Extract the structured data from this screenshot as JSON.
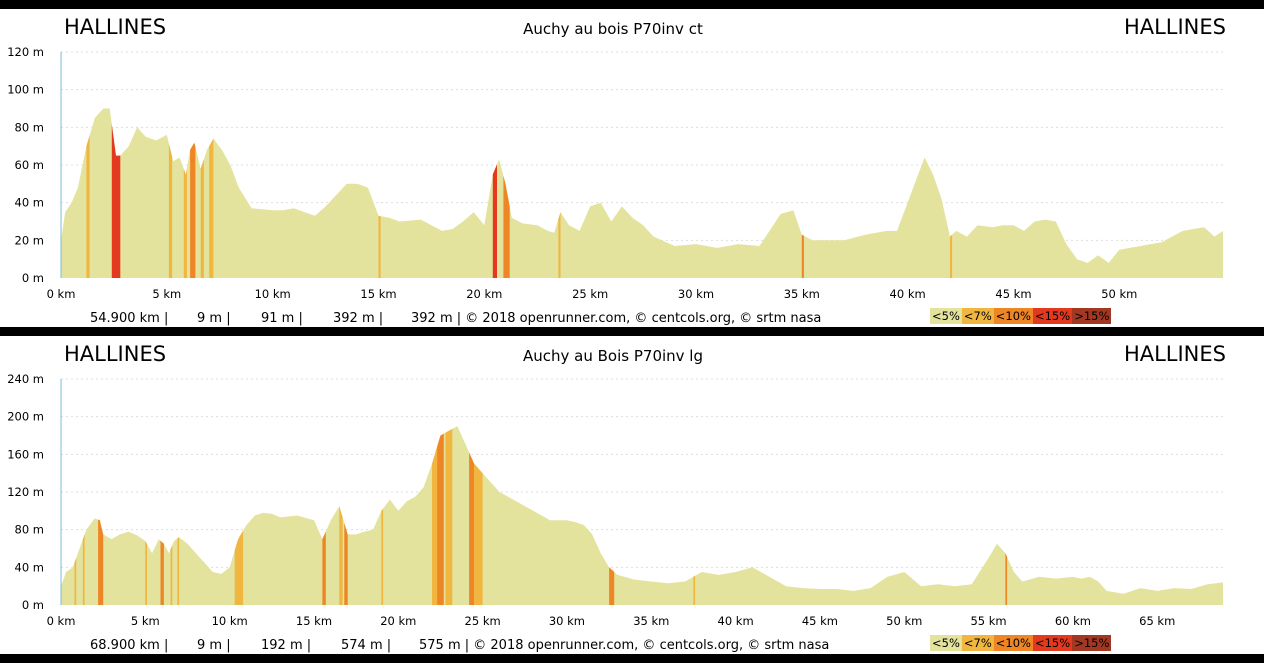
{
  "chart_data": [
    {
      "type": "area",
      "title": "Auchy au bois P70inv ct",
      "start_label": "HALLINES",
      "end_label": "HALLINES",
      "x_unit": "km",
      "y_unit": "m",
      "xlim": [
        0,
        54.9
      ],
      "ylim": [
        0,
        120
      ],
      "y_ticks": [
        "0 m",
        "20 m",
        "40 m",
        "60 m",
        "80 m",
        "100 m",
        "120 m"
      ],
      "x_ticks": [
        "0 km",
        "5 km",
        "10 km",
        "15 km",
        "20 km",
        "25 km",
        "30 km",
        "35 km",
        "40 km",
        "45 km",
        "50 km"
      ],
      "grid": true,
      "x": [
        0,
        0.2,
        0.5,
        0.8,
        1.2,
        1.6,
        2.0,
        2.3,
        2.6,
        2.8,
        3.2,
        3.6,
        4.0,
        4.5,
        5.0,
        5.3,
        5.6,
        5.9,
        6.1,
        6.3,
        6.6,
        6.9,
        7.2,
        7.6,
        8.0,
        8.4,
        9.0,
        10.0,
        10.5,
        11.0,
        11.5,
        12.0,
        12.5,
        13.0,
        13.5,
        14.0,
        14.5,
        15.0,
        15.5,
        16.0,
        17.0,
        17.5,
        18.0,
        18.5,
        19.0,
        19.5,
        20.0,
        20.4,
        20.7,
        21.0,
        21.3,
        21.8,
        22.5,
        23.0,
        23.3,
        23.6,
        24.0,
        24.5,
        25.0,
        25.5,
        26.0,
        26.5,
        27.0,
        27.5,
        28.0,
        29.0,
        30.0,
        31.0,
        32.0,
        33.0,
        34.0,
        34.6,
        35.0,
        35.5,
        36.0,
        37.0,
        38.0,
        39.0,
        39.5,
        40.0,
        40.5,
        40.8,
        41.2,
        41.6,
        42.0,
        42.3,
        42.8,
        43.3,
        44.0,
        44.5,
        45.0,
        45.5,
        46.0,
        46.5,
        47.0,
        47.5,
        48.0,
        48.5,
        49.0,
        49.5,
        50.0,
        51.0,
        52.0,
        53.0,
        53.5,
        54.0,
        54.5,
        54.9
      ],
      "y": [
        20,
        35,
        40,
        48,
        70,
        85,
        90,
        90,
        65,
        65,
        70,
        80,
        75,
        73,
        76,
        62,
        64,
        55,
        68,
        72,
        58,
        68,
        74,
        68,
        60,
        48,
        37,
        36,
        36,
        37,
        35,
        33,
        38,
        44,
        50,
        50,
        48,
        33,
        32,
        30,
        31,
        28,
        25,
        26,
        30,
        35,
        28,
        55,
        63,
        50,
        32,
        29,
        28,
        25,
        24,
        35,
        28,
        25,
        38,
        40,
        30,
        38,
        32,
        28,
        22,
        17,
        18,
        16,
        18,
        17,
        34,
        36,
        23,
        20,
        20,
        20,
        23,
        25,
        25,
        40,
        55,
        64,
        55,
        42,
        22,
        25,
        22,
        28,
        27,
        28,
        28,
        25,
        30,
        31,
        30,
        18,
        10,
        8,
        12,
        8,
        15,
        17,
        19,
        25,
        26,
        27,
        22,
        25
      ],
      "steep_segments": [
        {
          "from": 1.2,
          "to": 1.35,
          "class": "<7%"
        },
        {
          "from": 2.4,
          "to": 2.8,
          "class": "<15%"
        },
        {
          "from": 5.1,
          "to": 5.25,
          "class": "<7%"
        },
        {
          "from": 5.8,
          "to": 5.95,
          "class": "<7%"
        },
        {
          "from": 6.1,
          "to": 6.35,
          "class": "<10%"
        },
        {
          "from": 6.6,
          "to": 6.75,
          "class": "<7%"
        },
        {
          "from": 7.0,
          "to": 7.2,
          "class": "<7%"
        },
        {
          "from": 15.0,
          "to": 15.1,
          "class": "<7%"
        },
        {
          "from": 20.4,
          "to": 20.6,
          "class": "<15%"
        },
        {
          "from": 20.9,
          "to": 21.2,
          "class": "<10%"
        },
        {
          "from": 23.5,
          "to": 23.6,
          "class": "<7%"
        },
        {
          "from": 35.0,
          "to": 35.1,
          "class": "<10%"
        },
        {
          "from": 42.0,
          "to": 42.1,
          "class": "<7%"
        }
      ],
      "stats": {
        "distance": "54.900 km",
        "min_altitude": "9 m",
        "max_altitude": "91 m",
        "ascent": "392 m",
        "descent": "392 m",
        "credits": "© 2018 openrunner.com, © centcols.org, © srtm nasa"
      }
    },
    {
      "type": "area",
      "title": "Auchy au Bois P70inv lg",
      "start_label": "HALLINES",
      "end_label": "HALLINES",
      "x_unit": "km",
      "y_unit": "m",
      "xlim": [
        0,
        68.9
      ],
      "ylim": [
        0,
        240
      ],
      "y_ticks": [
        "0 m",
        "40 m",
        "80 m",
        "120 m",
        "160 m",
        "200 m",
        "240 m"
      ],
      "x_ticks": [
        "0 km",
        "5 km",
        "10 km",
        "15 km",
        "20 km",
        "25 km",
        "30 km",
        "35 km",
        "40 km",
        "45 km",
        "50 km",
        "55 km",
        "60 km",
        "65 km"
      ],
      "grid": true,
      "x": [
        0,
        0.3,
        0.7,
        1.0,
        1.5,
        2.0,
        2.3,
        2.5,
        3.0,
        3.5,
        4.0,
        4.5,
        5.0,
        5.4,
        5.8,
        6.1,
        6.4,
        6.7,
        7.0,
        7.5,
        8.0,
        8.5,
        9.0,
        9.5,
        10.0,
        10.5,
        11.0,
        11.5,
        12.0,
        12.5,
        13.0,
        14.0,
        15.0,
        15.5,
        16.0,
        16.5,
        17.0,
        17.5,
        18.0,
        18.5,
        19.0,
        19.5,
        20.0,
        20.5,
        21.0,
        21.5,
        22.0,
        22.5,
        23.0,
        23.5,
        24.0,
        24.5,
        25.0,
        26.0,
        27.0,
        28.0,
        29.0,
        30.0,
        30.5,
        31.0,
        31.5,
        32.0,
        32.5,
        33.0,
        34.0,
        35.0,
        36.0,
        37.0,
        37.5,
        38.0,
        39.0,
        40.0,
        41.0,
        42.0,
        43.0,
        44.0,
        45.0,
        46.0,
        47.0,
        48.0,
        49.0,
        50.0,
        51.0,
        52.0,
        53.0,
        54.0,
        55.0,
        55.5,
        56.0,
        56.5,
        57.0,
        58.0,
        59.0,
        60.0,
        60.5,
        61.0,
        61.5,
        62.0,
        63.0,
        64.0,
        65.0,
        66.0,
        67.0,
        68.0,
        68.9
      ],
      "y": [
        20,
        35,
        40,
        55,
        80,
        92,
        90,
        75,
        70,
        75,
        78,
        74,
        68,
        55,
        70,
        65,
        55,
        68,
        72,
        65,
        55,
        45,
        35,
        33,
        40,
        70,
        85,
        95,
        98,
        97,
        93,
        95,
        90,
        70,
        90,
        105,
        75,
        75,
        78,
        80,
        100,
        112,
        100,
        110,
        115,
        125,
        150,
        180,
        185,
        190,
        170,
        150,
        140,
        120,
        110,
        100,
        90,
        90,
        88,
        85,
        75,
        55,
        40,
        32,
        27,
        25,
        23,
        25,
        30,
        35,
        32,
        35,
        40,
        30,
        20,
        18,
        17,
        17,
        15,
        18,
        30,
        35,
        20,
        22,
        20,
        22,
        50,
        65,
        55,
        35,
        25,
        30,
        28,
        30,
        28,
        30,
        25,
        15,
        12,
        18,
        15,
        18,
        17,
        22,
        24
      ],
      "steep_segments": [
        {
          "from": 0.8,
          "to": 0.9,
          "class": "<7%"
        },
        {
          "from": 1.3,
          "to": 1.4,
          "class": "<7%"
        },
        {
          "from": 2.2,
          "to": 2.5,
          "class": "<10%"
        },
        {
          "from": 5.0,
          "to": 5.1,
          "class": "<7%"
        },
        {
          "from": 5.9,
          "to": 6.1,
          "class": "<10%"
        },
        {
          "from": 6.5,
          "to": 6.6,
          "class": "<7%"
        },
        {
          "from": 6.9,
          "to": 7.0,
          "class": "<7%"
        },
        {
          "from": 10.3,
          "to": 10.8,
          "class": "<7%"
        },
        {
          "from": 15.5,
          "to": 15.7,
          "class": "<10%"
        },
        {
          "from": 16.5,
          "to": 16.7,
          "class": "<7%"
        },
        {
          "from": 16.8,
          "to": 17.0,
          "class": "<10%"
        },
        {
          "from": 19.0,
          "to": 19.1,
          "class": "<7%"
        },
        {
          "from": 22.0,
          "to": 22.3,
          "class": "<7%"
        },
        {
          "from": 22.3,
          "to": 22.7,
          "class": "<10%"
        },
        {
          "from": 22.8,
          "to": 23.2,
          "class": "<7%"
        },
        {
          "from": 24.2,
          "to": 24.5,
          "class": "<10%"
        },
        {
          "from": 24.5,
          "to": 25.0,
          "class": "<7%"
        },
        {
          "from": 32.5,
          "to": 32.8,
          "class": "<10%"
        },
        {
          "from": 37.5,
          "to": 37.6,
          "class": "<7%"
        },
        {
          "from": 56.0,
          "to": 56.1,
          "class": "<10%"
        }
      ],
      "stats": {
        "distance": "68.900 km",
        "min_altitude": "9 m",
        "max_altitude": "192 m",
        "ascent": "574 m",
        "descent": "575 m",
        "credits": "© 2018 openrunner.com, © centcols.org, © srtm nasa"
      }
    }
  ],
  "legend": [
    {
      "label": "<5%",
      "color": "#e3e39d"
    },
    {
      "label": "<7%",
      "color": "#f1b63f"
    },
    {
      "label": "<10%",
      "color": "#ee8626"
    },
    {
      "label": "<15%",
      "color": "#e2391f"
    },
    {
      "label": ">15%",
      "color": "#a33822"
    }
  ],
  "colors": {
    "base_fill": "#e3e39d",
    "grid": "#dddddd",
    "axis": "#7fb9d6"
  }
}
